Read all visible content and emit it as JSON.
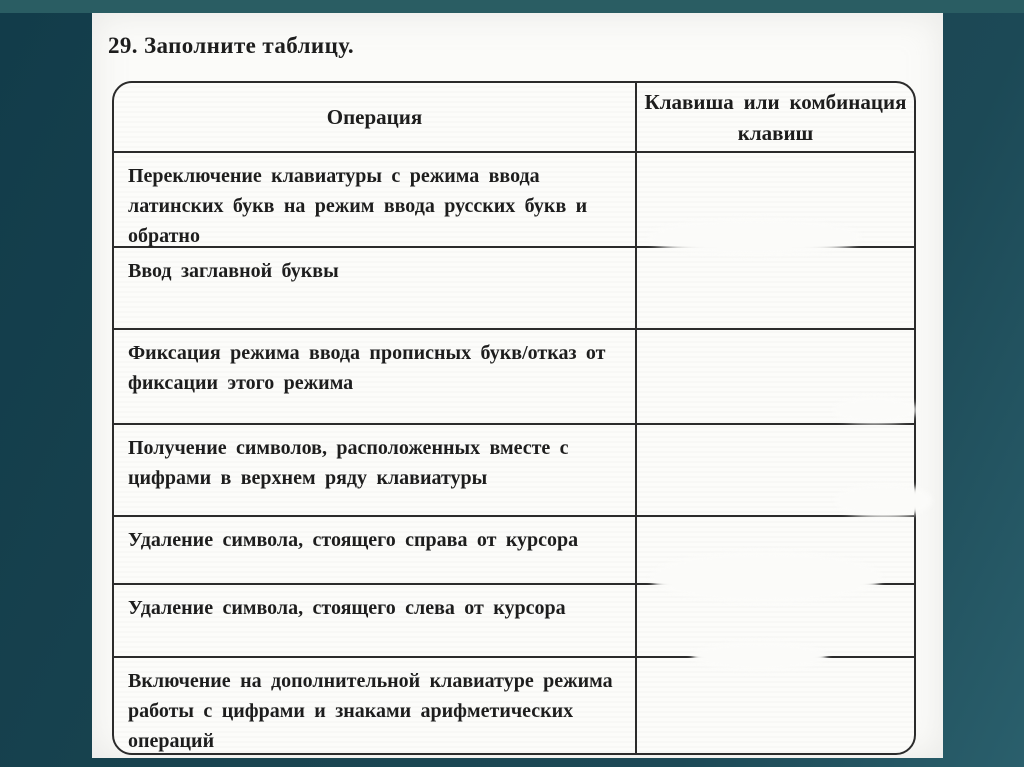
{
  "slide": {
    "title_number": "29.",
    "title_text": "Заполните таблицу."
  },
  "table": {
    "col1_header": "Операция",
    "col2_header": "Клавиша или комбинация клавиш",
    "rows": [
      {
        "operation": "Переключение клавиатуры с режима ввода латинских букв на режим ввода русских букв и обратно",
        "answer": ""
      },
      {
        "operation": "Ввод заглавной буквы",
        "answer": ""
      },
      {
        "operation": "Фиксация режима ввода прописных букв/отказ от фиксации этого режима",
        "answer": ""
      },
      {
        "operation": "Получение символов, расположенных вместе с цифрами в верхнем ряду клавиатуры",
        "answer": ""
      },
      {
        "operation": "Удаление символа, стоящего справа от курсора",
        "answer": ""
      },
      {
        "operation": "Удаление символа, стоящего слева от курсора",
        "answer": ""
      },
      {
        "operation": "Включение на дополнительной клавиатуре режима работы с цифрами и знаками арифметических операций",
        "answer": ""
      }
    ]
  },
  "colors": {
    "background_teal": "#1a4654",
    "top_band": "#2a5d63",
    "page": "#fbfbf9",
    "table_line": "#2b2b2b",
    "text": "#1d1d1d"
  }
}
